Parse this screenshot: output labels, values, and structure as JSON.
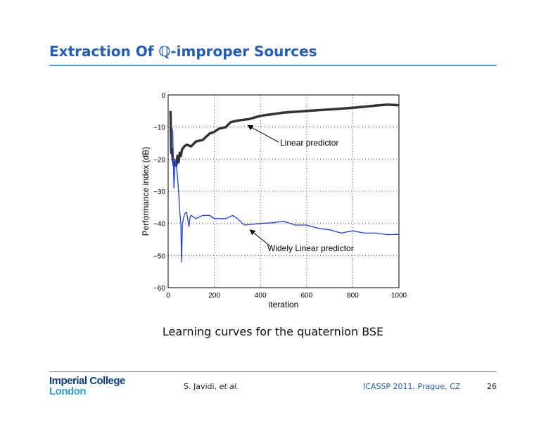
{
  "slide": {
    "title": "Extraction Of ℚ-improper Sources",
    "caption": "Learning curves for the quaternion BSE",
    "footer": {
      "logo_line1": "Imperial College",
      "logo_line2": "London",
      "author": "S. Javidi,",
      "author_suffix": "et al.",
      "conference": "ICASSP 2011, Prague, CZ",
      "page": "26"
    }
  },
  "chart_data": {
    "type": "line",
    "title": "",
    "xlabel": "iteration",
    "ylabel": "Performance index (dB)",
    "xlim": [
      0,
      1000
    ],
    "ylim": [
      -60,
      0
    ],
    "xticks": [
      "0",
      "200",
      "400",
      "600",
      "800",
      "1000"
    ],
    "yticks": [
      "0",
      "−10",
      "−20",
      "−30",
      "−40",
      "−50",
      "−60"
    ],
    "grid": true,
    "series": [
      {
        "name": "Linear predictor",
        "color": "#333333",
        "x": [
          10,
          13,
          16,
          20,
          25,
          30,
          35,
          40,
          45,
          50,
          55,
          60,
          70,
          80,
          100,
          120,
          150,
          180,
          200,
          220,
          250,
          270,
          300,
          350,
          400,
          500,
          600,
          700,
          800,
          900,
          950,
          1000
        ],
        "y": [
          -5,
          -18,
          -17,
          -20,
          -22,
          -21,
          -22,
          -19,
          -21,
          -18,
          -19,
          -17,
          -16,
          -15.5,
          -16,
          -14.5,
          -14,
          -12,
          -11.5,
          -10.5,
          -10,
          -8.5,
          -8,
          -7.5,
          -6.5,
          -5.5,
          -5,
          -4.5,
          -4,
          -3.3,
          -3,
          -3.2
        ]
      },
      {
        "name": "Widely Linear predictor",
        "color": "#1a3cff",
        "x": [
          15,
          20,
          25,
          30,
          35,
          40,
          45,
          50,
          55,
          58,
          62,
          68,
          72,
          80,
          90,
          95,
          100,
          120,
          150,
          180,
          200,
          250,
          280,
          300,
          330,
          400,
          450,
          500,
          550,
          600,
          650,
          700,
          750,
          800,
          850,
          900,
          950,
          1000
        ],
        "y": [
          -10,
          -11.5,
          -29,
          -20,
          -22,
          -25,
          -30,
          -36,
          -40,
          -52,
          -40,
          -38,
          -37,
          -36.5,
          -41,
          -38,
          -37.5,
          -38.5,
          -37.5,
          -37.5,
          -38.5,
          -38.5,
          -37.5,
          -38.5,
          -40.5,
          -40,
          -39.8,
          -39.3,
          -40.5,
          -40.5,
          -41.5,
          -42,
          -43,
          -42.3,
          -43,
          -43,
          -43.5,
          -43.4
        ]
      }
    ],
    "annotations": [
      {
        "text": "Linear predictor",
        "points_to": [
          345,
          -9.5
        ]
      },
      {
        "text": "Widely Linear predictor",
        "points_to": [
          355,
          -42
        ]
      }
    ]
  }
}
